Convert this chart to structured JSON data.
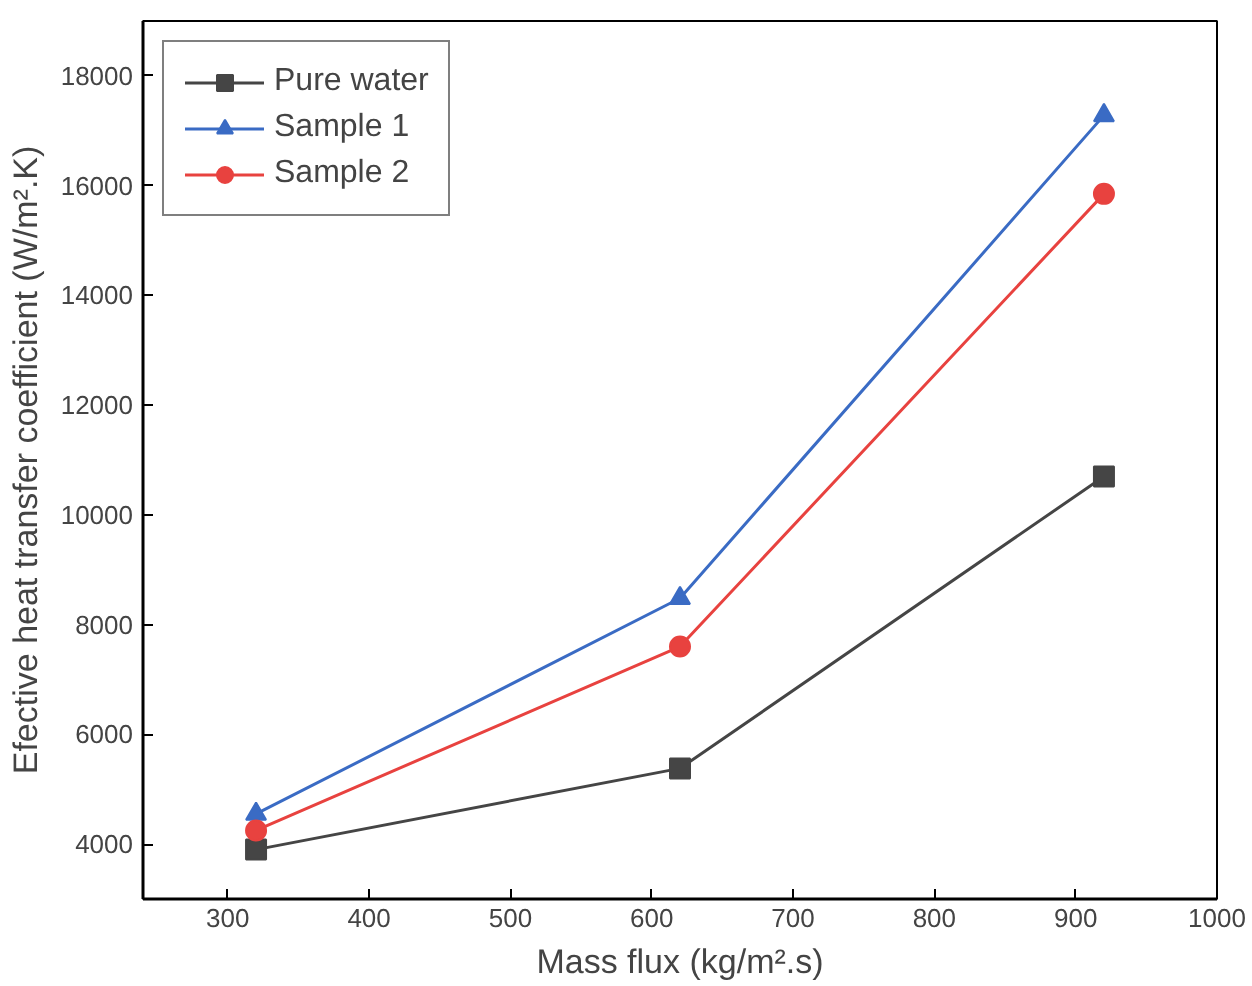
{
  "chart_data": {
    "type": "line",
    "xlabel": "Mass flux (kg/m².s)",
    "ylabel": "Efective heat transfer coefficient (W/m².K)",
    "x": [
      320,
      620,
      920
    ],
    "series": [
      {
        "name": "Pure water",
        "color": "#454545",
        "marker": "square",
        "values": [
          3900,
          5380,
          10700
        ]
      },
      {
        "name": "Sample 1",
        "color": "#3a6bc4",
        "marker": "triangle",
        "values": [
          4550,
          8480,
          17280
        ]
      },
      {
        "name": "Sample 2",
        "color": "#e8423f",
        "marker": "circle",
        "values": [
          4250,
          7600,
          15850
        ]
      }
    ],
    "xlim": [
      240,
      1000
    ],
    "xticks": [
      300,
      400,
      500,
      600,
      700,
      800,
      900,
      1000
    ],
    "ylim": [
      3000,
      19000
    ],
    "yticks": [
      4000,
      6000,
      8000,
      10000,
      12000,
      14000,
      16000,
      18000
    ],
    "grid": false,
    "legend": "top left",
    "line_style": "solid"
  }
}
